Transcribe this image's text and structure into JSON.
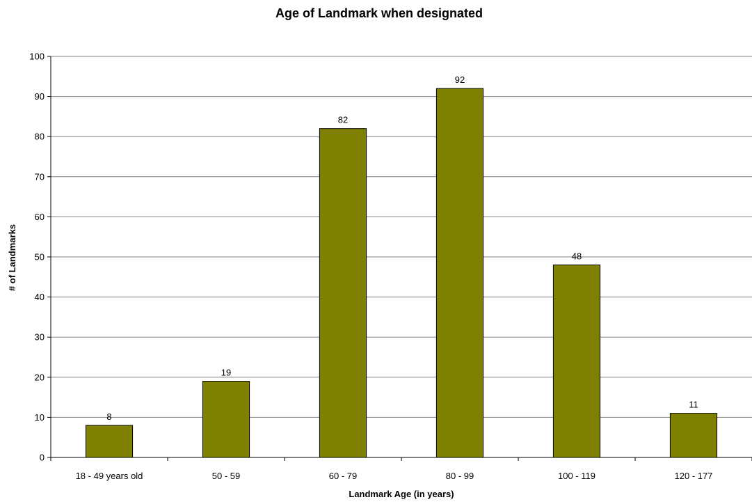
{
  "chart_data": {
    "type": "bar",
    "title": "Age of Landmark when designated",
    "xlabel": "Landmark Age (in years)",
    "ylabel": "# of Landmarks",
    "categories": [
      "18 - 49 years old",
      "50 - 59",
      "60 - 79",
      "80 - 99",
      "100 - 119",
      "120 - 177"
    ],
    "values": [
      8,
      19,
      82,
      92,
      48,
      11
    ],
    "ylim": [
      0,
      100
    ],
    "yticks": [
      0,
      10,
      20,
      30,
      40,
      50,
      60,
      70,
      80,
      90,
      100
    ],
    "grid": true,
    "legend": "none",
    "bar_color": "#808000",
    "bar_edge_color": "#000000"
  }
}
